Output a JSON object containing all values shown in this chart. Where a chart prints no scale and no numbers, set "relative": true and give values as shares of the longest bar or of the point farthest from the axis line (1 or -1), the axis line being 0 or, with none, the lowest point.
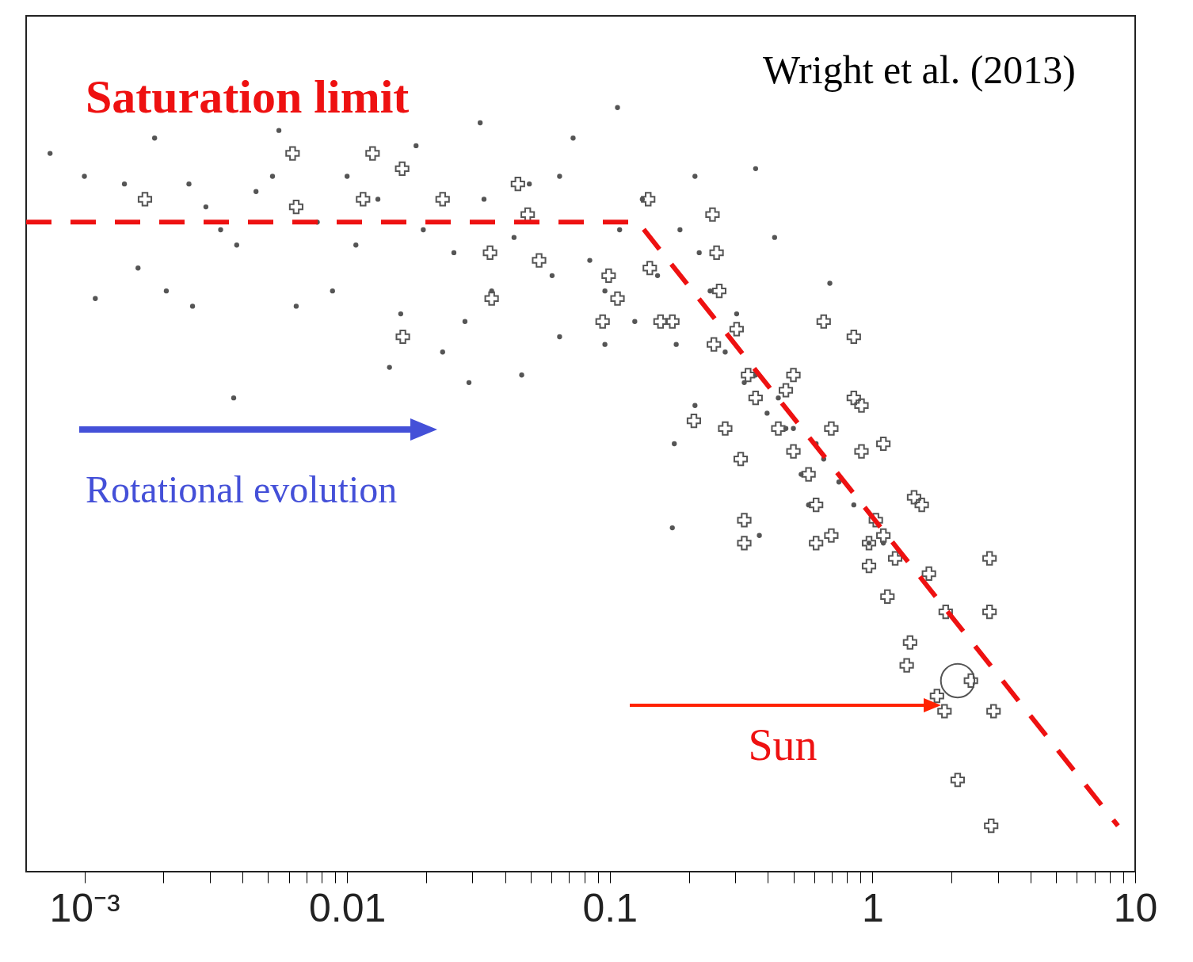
{
  "chart_data": {
    "type": "scatter",
    "relative": true,
    "log": "x",
    "grid": false,
    "legend": false,
    "xlim": [
      0.0006,
      10
    ],
    "xticks": [
      {
        "value": 0.001,
        "label": "10⁻³"
      },
      {
        "value": 0.002,
        "label": null
      },
      {
        "value": 0.003,
        "label": null
      },
      {
        "value": 0.004,
        "label": null
      },
      {
        "value": 0.005,
        "label": null
      },
      {
        "value": 0.006,
        "label": null
      },
      {
        "value": 0.007,
        "label": null
      },
      {
        "value": 0.008,
        "label": null
      },
      {
        "value": 0.009,
        "label": null
      },
      0.01,
      {
        "value": 0.02,
        "label": null
      },
      {
        "value": 0.03,
        "label": null
      },
      {
        "value": 0.04,
        "label": null
      },
      {
        "value": 0.05,
        "label": null
      },
      {
        "value": 0.06,
        "label": null
      },
      {
        "value": 0.07,
        "label": null
      },
      {
        "value": 0.08,
        "label": null
      },
      {
        "value": 0.09,
        "label": null
      },
      0.1,
      {
        "value": 0.2,
        "label": null
      },
      {
        "value": 0.3,
        "label": null
      },
      {
        "value": 0.4,
        "label": null
      },
      {
        "value": 0.5,
        "label": null
      },
      {
        "value": 0.6,
        "label": null
      },
      {
        "value": 0.7,
        "label": null
      },
      {
        "value": 0.8,
        "label": null
      },
      {
        "value": 0.9,
        "label": null
      },
      1,
      {
        "value": 2,
        "label": null
      },
      {
        "value": 3,
        "label": null
      },
      {
        "value": 4,
        "label": null
      },
      {
        "value": 5,
        "label": null
      },
      {
        "value": 6,
        "label": null
      },
      {
        "value": 7,
        "label": null
      },
      {
        "value": 8,
        "label": null
      },
      {
        "value": 9,
        "label": null
      },
      10
    ],
    "annotations": [
      "Wright et al. (2013)",
      "Rotational evolution",
      "Sun"
    ],
    "series": [
      {
        "type": "scatter",
        "marker": "circle",
        "color": "#555555",
        "x": [
          0.00074,
          0.001,
          0.0011,
          0.00142,
          0.0016,
          0.00185,
          0.00205,
          0.00258,
          0.0025,
          0.0029,
          0.0037,
          0.0038,
          0.0045,
          0.0055,
          0.0064,
          0.0077,
          0.0088,
          0.01,
          0.0108,
          0.0131,
          0.0145,
          0.016,
          0.0183,
          0.0195,
          0.0231,
          0.0255,
          0.0291,
          0.0321,
          0.0355,
          0.0432,
          0.0462,
          0.0494,
          0.0603,
          0.0644,
          0.0725,
          0.0839,
          0.0958,
          0.107,
          0.109,
          0.1245,
          0.133,
          0.152,
          0.176,
          0.173,
          0.185,
          0.211,
          0.219,
          0.241,
          0.275,
          0.304,
          0.359,
          0.359,
          0.371,
          0.424,
          0.438,
          0.5,
          0.535,
          0.571,
          0.688,
          0.61,
          0.745,
          0.849,
          0.97,
          1.1,
          0.179,
          0.0958,
          0.0644,
          0.0281,
          0.0052,
          0.0033,
          0.0332,
          0.211,
          0.325,
          0.468,
          0.397,
          0.652
        ],
        "values": [
          0.94,
          0.91,
          0.75,
          0.9,
          0.79,
          0.96,
          0.76,
          0.74,
          0.9,
          0.87,
          0.62,
          0.82,
          0.89,
          0.97,
          0.74,
          0.85,
          0.76,
          0.91,
          0.82,
          0.88,
          0.66,
          0.73,
          0.95,
          0.84,
          0.68,
          0.81,
          0.64,
          0.98,
          0.76,
          0.83,
          0.65,
          0.9,
          0.78,
          0.91,
          0.96,
          0.8,
          0.76,
          1.0,
          0.84,
          0.72,
          0.88,
          0.78,
          0.56,
          0.45,
          0.84,
          0.91,
          0.81,
          0.76,
          0.68,
          0.73,
          0.92,
          0.65,
          0.44,
          0.83,
          0.62,
          0.58,
          0.52,
          0.48,
          0.77,
          0.56,
          0.51,
          0.48,
          0.43,
          0.43,
          0.69,
          0.69,
          0.7,
          0.72,
          0.91,
          0.84,
          0.88,
          0.61,
          0.64,
          0.58,
          0.6,
          0.54
        ]
      },
      {
        "type": "scatter",
        "marker": "cross",
        "color": "#555555",
        "x": [
          0.0017,
          0.0062,
          0.0064,
          0.0125,
          0.0115,
          0.0162,
          0.0163,
          0.0231,
          0.0355,
          0.035,
          0.0447,
          0.0487,
          0.0538,
          0.0939,
          0.099,
          0.107,
          0.14,
          0.142,
          0.156,
          0.173,
          0.246,
          0.255,
          0.261,
          0.304,
          0.209,
          0.275,
          0.249,
          0.336,
          0.5,
          0.652,
          0.849,
          0.849,
          0.908,
          0.697,
          1.1,
          0.908,
          1.44,
          1.54,
          1.03,
          0.97,
          0.61,
          0.697,
          1.1,
          0.325,
          0.325,
          1.22,
          1.14,
          1.64,
          2.79,
          1.9,
          2.79,
          1.39,
          1.35,
          1.76,
          1.88,
          2.37,
          2.89,
          2.11,
          2.83,
          0.359,
          0.438,
          0.571,
          0.61,
          0.5,
          0.468,
          0.97,
          0.315
        ],
        "values": [
          0.88,
          0.94,
          0.87,
          0.94,
          0.88,
          0.92,
          0.7,
          0.88,
          0.75,
          0.81,
          0.9,
          0.86,
          0.8,
          0.72,
          0.78,
          0.75,
          0.88,
          0.79,
          0.72,
          0.72,
          0.86,
          0.81,
          0.76,
          0.71,
          0.59,
          0.58,
          0.69,
          0.65,
          0.65,
          0.72,
          0.7,
          0.62,
          0.61,
          0.58,
          0.56,
          0.55,
          0.49,
          0.48,
          0.46,
          0.43,
          0.43,
          0.44,
          0.44,
          0.46,
          0.43,
          0.41,
          0.36,
          0.39,
          0.41,
          0.34,
          0.34,
          0.3,
          0.27,
          0.23,
          0.21,
          0.25,
          0.21,
          0.12,
          0.06,
          0.62,
          0.58,
          0.52,
          0.48,
          0.55,
          0.63,
          0.4,
          0.54
        ]
      },
      {
        "type": "scatter",
        "marker": "circle",
        "color": "#555555",
        "x": [
          2.11
        ],
        "values": [
          0.25
        ]
      },
      {
        "type": "line",
        "name": "Saturation limit",
        "color": "#ee1111",
        "line_style": "dashed",
        "x": [
          0.0006,
          0.128,
          8.6
        ],
        "values": [
          0.85,
          0.85,
          0.06
        ]
      }
    ]
  }
}
